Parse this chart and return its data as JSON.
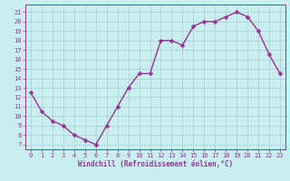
{
  "x": [
    0,
    1,
    2,
    3,
    4,
    5,
    6,
    7,
    8,
    9,
    10,
    11,
    12,
    13,
    14,
    15,
    16,
    17,
    18,
    19,
    20,
    21,
    22,
    23
  ],
  "y": [
    12.5,
    10.5,
    9.5,
    9.0,
    8.0,
    7.5,
    7.0,
    9.0,
    11.0,
    13.0,
    14.5,
    14.5,
    18.0,
    18.0,
    17.5,
    19.5,
    20.0,
    20.0,
    20.5,
    21.0,
    20.5,
    19.0,
    16.5,
    14.5
  ],
  "color": "#993399",
  "bg_color": "#c8eef0",
  "grid_color": "#aacccc",
  "xlabel": "Windchill (Refroidissement éolien,°C)",
  "ylim": [
    6.5,
    21.8
  ],
  "xlim": [
    -0.5,
    23.5
  ],
  "yticks": [
    7,
    8,
    9,
    10,
    11,
    12,
    13,
    14,
    15,
    16,
    17,
    18,
    19,
    20,
    21
  ],
  "xticks": [
    0,
    1,
    2,
    3,
    4,
    5,
    6,
    7,
    8,
    9,
    10,
    11,
    12,
    13,
    14,
    15,
    16,
    17,
    18,
    19,
    20,
    21,
    22,
    23
  ],
  "markersize": 2.5,
  "linewidth": 1.0,
  "label_fontsize": 5.5,
  "tick_fontsize": 5.0
}
